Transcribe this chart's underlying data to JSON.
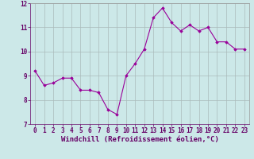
{
  "x": [
    0,
    1,
    2,
    3,
    4,
    5,
    6,
    7,
    8,
    9,
    10,
    11,
    12,
    13,
    14,
    15,
    16,
    17,
    18,
    19,
    20,
    21,
    22,
    23
  ],
  "y": [
    9.2,
    8.6,
    8.7,
    8.9,
    8.9,
    8.4,
    8.4,
    8.3,
    7.6,
    7.4,
    9.0,
    9.5,
    10.1,
    11.4,
    11.8,
    11.2,
    10.85,
    11.1,
    10.85,
    11.0,
    10.4,
    10.4,
    10.1,
    10.1
  ],
  "line_color": "#990099",
  "marker": "D",
  "marker_size": 1.8,
  "bg_color": "#cce8e8",
  "grid_color": "#aabbbb",
  "xlabel": "Windchill (Refroidissement éolien,°C)",
  "ylim": [
    7.0,
    12.0
  ],
  "xlim": [
    -0.5,
    23.5
  ],
  "yticks": [
    7,
    8,
    9,
    10,
    11,
    12
  ],
  "xticks": [
    0,
    1,
    2,
    3,
    4,
    5,
    6,
    7,
    8,
    9,
    10,
    11,
    12,
    13,
    14,
    15,
    16,
    17,
    18,
    19,
    20,
    21,
    22,
    23
  ],
  "tick_label_fontsize": 5.5,
  "xlabel_fontsize": 6.5,
  "line_width": 0.8
}
